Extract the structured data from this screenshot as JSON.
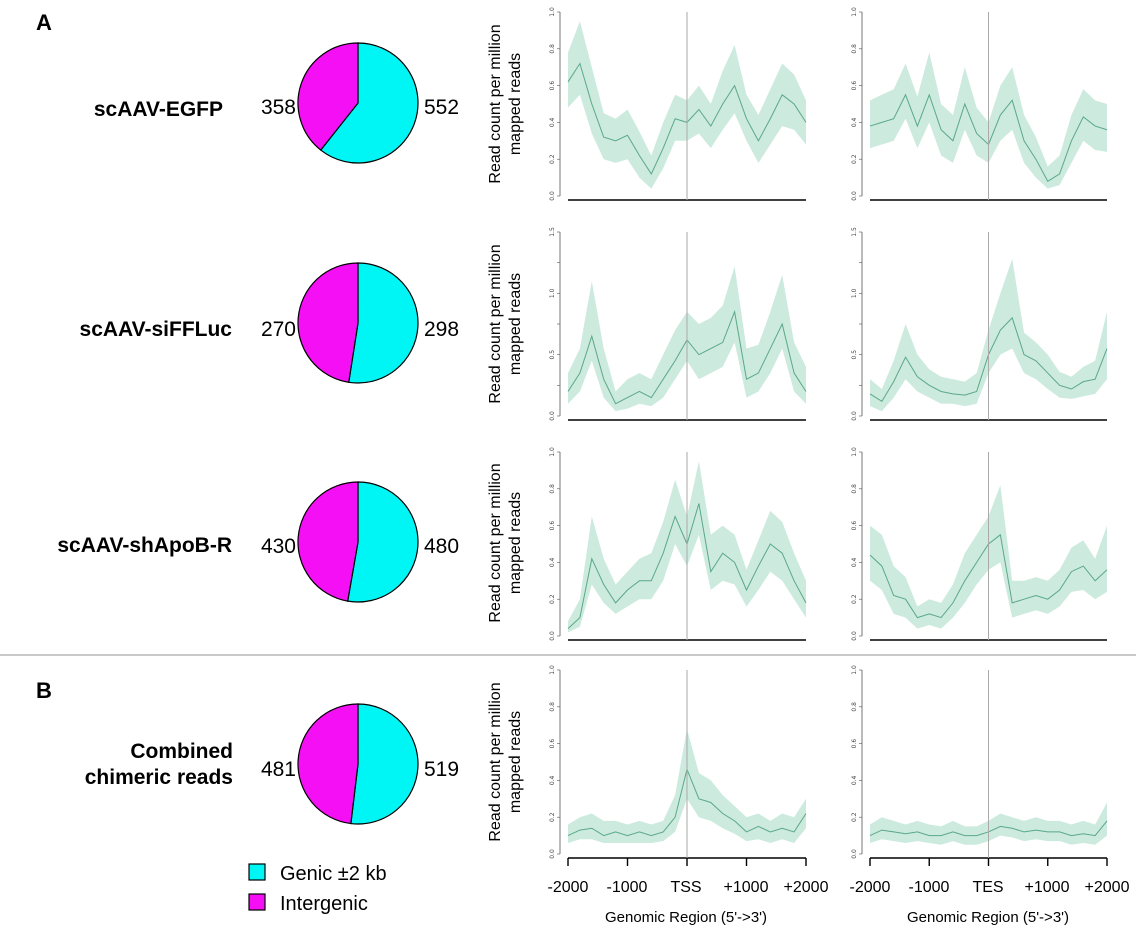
{
  "panel_labels": [
    "A",
    "B"
  ],
  "colors": {
    "genic": "#00f5f5",
    "intergenic": "#f50ff5",
    "band": "#c9e9dc",
    "line": "#5aa88a",
    "divider": "#c8c8c8"
  },
  "legend": {
    "genic_label": "Genic ±2 kb",
    "intergenic_label": "Intergenic"
  },
  "y_axis_label_line1": "Read count per million",
  "y_axis_label_line2": "mapped reads",
  "x_axis_label": "Genomic Region (5'->3')",
  "x_ticks_tss": [
    "-2000",
    "-1000",
    "TSS",
    "+1000",
    "+2000"
  ],
  "x_ticks_tes": [
    "-2000",
    "-1000",
    "TES",
    "+1000",
    "+2000"
  ],
  "chart_data": [
    {
      "type": "pie",
      "sample": "scAAV-EGFP",
      "categories": [
        "Genic ±2 kb",
        "Intergenic"
      ],
      "values": [
        552,
        358
      ]
    },
    {
      "type": "pie",
      "sample": "scAAV-siFFLuc",
      "categories": [
        "Genic ±2 kb",
        "Intergenic"
      ],
      "values": [
        298,
        270
      ]
    },
    {
      "type": "pie",
      "sample": "scAAV-shApoB-R",
      "categories": [
        "Genic ±2 kb",
        "Intergenic"
      ],
      "values": [
        480,
        430
      ]
    },
    {
      "type": "pie",
      "sample_line1": "Combined",
      "sample_line2": "chimeric reads",
      "categories": [
        "Genic ±2 kb",
        "Intergenic"
      ],
      "values": [
        519,
        481
      ]
    },
    {
      "type": "line",
      "row": 0,
      "region": "TSS",
      "ylim": [
        0,
        1.0
      ],
      "yticks": [
        "0.0",
        "0.2",
        "0.4",
        "0.6",
        "0.8",
        "1.0"
      ],
      "x": [
        -2000,
        -1800,
        -1600,
        -1400,
        -1200,
        -1000,
        -800,
        -600,
        -400,
        -200,
        0,
        200,
        400,
        600,
        800,
        1000,
        1200,
        1400,
        1600,
        1800,
        2000
      ],
      "y": [
        0.62,
        0.72,
        0.5,
        0.32,
        0.3,
        0.33,
        0.22,
        0.12,
        0.26,
        0.42,
        0.4,
        0.47,
        0.38,
        0.5,
        0.6,
        0.42,
        0.3,
        0.42,
        0.55,
        0.5,
        0.4
      ],
      "lower": [
        0.48,
        0.55,
        0.34,
        0.2,
        0.18,
        0.2,
        0.1,
        0.04,
        0.15,
        0.3,
        0.3,
        0.34,
        0.26,
        0.36,
        0.45,
        0.3,
        0.18,
        0.28,
        0.38,
        0.36,
        0.28
      ],
      "upper": [
        0.78,
        0.95,
        0.7,
        0.45,
        0.42,
        0.47,
        0.35,
        0.22,
        0.4,
        0.55,
        0.52,
        0.6,
        0.5,
        0.68,
        0.82,
        0.55,
        0.44,
        0.58,
        0.72,
        0.66,
        0.52
      ]
    },
    {
      "type": "line",
      "row": 0,
      "region": "TES",
      "ylim": [
        0,
        1.0
      ],
      "yticks": [
        "0.0",
        "0.2",
        "0.4",
        "0.6",
        "0.8",
        "1.0"
      ],
      "x": [
        -2000,
        -1800,
        -1600,
        -1400,
        -1200,
        -1000,
        -800,
        -600,
        -400,
        -200,
        0,
        200,
        400,
        600,
        800,
        1000,
        1200,
        1400,
        1600,
        1800,
        2000
      ],
      "y": [
        0.38,
        0.4,
        0.42,
        0.55,
        0.38,
        0.55,
        0.36,
        0.3,
        0.5,
        0.34,
        0.28,
        0.44,
        0.52,
        0.3,
        0.2,
        0.08,
        0.12,
        0.3,
        0.43,
        0.38,
        0.36
      ],
      "lower": [
        0.26,
        0.28,
        0.3,
        0.42,
        0.26,
        0.4,
        0.22,
        0.18,
        0.36,
        0.22,
        0.18,
        0.3,
        0.36,
        0.18,
        0.1,
        0.04,
        0.06,
        0.18,
        0.3,
        0.25,
        0.24
      ],
      "upper": [
        0.52,
        0.55,
        0.58,
        0.72,
        0.54,
        0.78,
        0.5,
        0.44,
        0.7,
        0.48,
        0.4,
        0.6,
        0.7,
        0.44,
        0.32,
        0.16,
        0.22,
        0.44,
        0.58,
        0.52,
        0.5
      ]
    },
    {
      "type": "line",
      "row": 1,
      "region": "TSS",
      "ylim": [
        0,
        1.5
      ],
      "yticks": [
        "0.0",
        "",
        "0.5",
        "",
        "1.0",
        "",
        "1.5"
      ],
      "x": [
        -2000,
        -1800,
        -1600,
        -1400,
        -1200,
        -1000,
        -800,
        -600,
        -400,
        -200,
        0,
        200,
        400,
        600,
        800,
        1000,
        1200,
        1400,
        1600,
        1800,
        2000
      ],
      "y": [
        0.2,
        0.35,
        0.65,
        0.3,
        0.1,
        0.15,
        0.2,
        0.15,
        0.3,
        0.45,
        0.62,
        0.5,
        0.55,
        0.6,
        0.85,
        0.3,
        0.35,
        0.55,
        0.75,
        0.35,
        0.2
      ],
      "lower": [
        0.1,
        0.2,
        0.45,
        0.15,
        0.04,
        0.06,
        0.1,
        0.08,
        0.15,
        0.3,
        0.45,
        0.3,
        0.35,
        0.4,
        0.6,
        0.15,
        0.2,
        0.35,
        0.55,
        0.2,
        0.1
      ],
      "upper": [
        0.35,
        0.55,
        1.1,
        0.55,
        0.2,
        0.3,
        0.35,
        0.3,
        0.5,
        0.7,
        0.85,
        0.75,
        0.8,
        0.9,
        1.22,
        0.55,
        0.58,
        0.85,
        1.15,
        0.6,
        0.4
      ]
    },
    {
      "type": "line",
      "row": 1,
      "region": "TES",
      "ylim": [
        0,
        1.5
      ],
      "yticks": [
        "0.0",
        "",
        "0.5",
        "",
        "1.0",
        "",
        "1.5"
      ],
      "x": [
        -2000,
        -1800,
        -1600,
        -1400,
        -1200,
        -1000,
        -800,
        -600,
        -400,
        -200,
        0,
        200,
        400,
        600,
        800,
        1000,
        1200,
        1400,
        1600,
        1800,
        2000
      ],
      "y": [
        0.18,
        0.12,
        0.28,
        0.48,
        0.32,
        0.25,
        0.2,
        0.18,
        0.17,
        0.2,
        0.5,
        0.7,
        0.8,
        0.5,
        0.45,
        0.35,
        0.25,
        0.22,
        0.28,
        0.3,
        0.55
      ],
      "lower": [
        0.08,
        0.04,
        0.15,
        0.3,
        0.2,
        0.15,
        0.1,
        0.1,
        0.08,
        0.1,
        0.35,
        0.5,
        0.55,
        0.35,
        0.3,
        0.22,
        0.15,
        0.14,
        0.16,
        0.18,
        0.3
      ],
      "upper": [
        0.3,
        0.22,
        0.45,
        0.75,
        0.5,
        0.38,
        0.32,
        0.3,
        0.28,
        0.35,
        0.7,
        1.0,
        1.28,
        0.68,
        0.6,
        0.5,
        0.36,
        0.32,
        0.4,
        0.45,
        0.85
      ]
    },
    {
      "type": "line",
      "row": 2,
      "region": "TSS",
      "ylim": [
        0,
        1.0
      ],
      "yticks": [
        "0.0",
        "0.2",
        "0.4",
        "0.6",
        "0.8",
        "1.0"
      ],
      "x": [
        -2000,
        -1800,
        -1600,
        -1400,
        -1200,
        -1000,
        -800,
        -600,
        -400,
        -200,
        0,
        200,
        400,
        600,
        800,
        1000,
        1200,
        1400,
        1600,
        1800,
        2000
      ],
      "y": [
        0.04,
        0.1,
        0.42,
        0.28,
        0.18,
        0.25,
        0.3,
        0.3,
        0.45,
        0.65,
        0.5,
        0.72,
        0.35,
        0.45,
        0.4,
        0.25,
        0.38,
        0.5,
        0.45,
        0.3,
        0.18
      ],
      "lower": [
        0.02,
        0.05,
        0.28,
        0.18,
        0.12,
        0.16,
        0.2,
        0.2,
        0.3,
        0.5,
        0.38,
        0.55,
        0.25,
        0.3,
        0.28,
        0.16,
        0.25,
        0.35,
        0.3,
        0.2,
        0.1
      ],
      "upper": [
        0.08,
        0.2,
        0.65,
        0.42,
        0.28,
        0.35,
        0.42,
        0.45,
        0.62,
        0.85,
        0.65,
        0.95,
        0.55,
        0.6,
        0.55,
        0.36,
        0.52,
        0.68,
        0.62,
        0.45,
        0.3
      ]
    },
    {
      "type": "line",
      "row": 2,
      "region": "TES",
      "ylim": [
        0,
        1.0
      ],
      "yticks": [
        "0.0",
        "0.2",
        "0.4",
        "0.6",
        "0.8",
        "1.0"
      ],
      "x": [
        -2000,
        -1800,
        -1600,
        -1400,
        -1200,
        -1000,
        -800,
        -600,
        -400,
        -200,
        0,
        200,
        400,
        600,
        800,
        1000,
        1200,
        1400,
        1600,
        1800,
        2000
      ],
      "y": [
        0.44,
        0.38,
        0.22,
        0.2,
        0.1,
        0.12,
        0.1,
        0.18,
        0.3,
        0.4,
        0.5,
        0.55,
        0.18,
        0.2,
        0.22,
        0.2,
        0.25,
        0.35,
        0.38,
        0.3,
        0.36
      ],
      "lower": [
        0.3,
        0.25,
        0.12,
        0.1,
        0.04,
        0.06,
        0.04,
        0.1,
        0.18,
        0.28,
        0.36,
        0.4,
        0.1,
        0.12,
        0.14,
        0.12,
        0.16,
        0.24,
        0.25,
        0.2,
        0.24
      ],
      "upper": [
        0.6,
        0.55,
        0.38,
        0.32,
        0.16,
        0.2,
        0.18,
        0.28,
        0.45,
        0.55,
        0.65,
        0.82,
        0.3,
        0.3,
        0.32,
        0.3,
        0.36,
        0.48,
        0.52,
        0.42,
        0.6
      ]
    },
    {
      "type": "line",
      "row": 3,
      "region": "TSS",
      "ylim": [
        0,
        1.0
      ],
      "yticks": [
        "0.0",
        "0.2",
        "0.4",
        "0.6",
        "0.8",
        "1.0"
      ],
      "x": [
        -2000,
        -1800,
        -1600,
        -1400,
        -1200,
        -1000,
        -800,
        -600,
        -400,
        -200,
        0,
        200,
        400,
        600,
        800,
        1000,
        1200,
        1400,
        1600,
        1800,
        2000
      ],
      "y": [
        0.1,
        0.13,
        0.14,
        0.1,
        0.12,
        0.1,
        0.12,
        0.1,
        0.12,
        0.2,
        0.46,
        0.3,
        0.28,
        0.22,
        0.18,
        0.12,
        0.15,
        0.12,
        0.14,
        0.12,
        0.22
      ],
      "lower": [
        0.06,
        0.08,
        0.08,
        0.06,
        0.06,
        0.06,
        0.06,
        0.06,
        0.07,
        0.12,
        0.3,
        0.2,
        0.18,
        0.14,
        0.11,
        0.07,
        0.08,
        0.06,
        0.08,
        0.06,
        0.14
      ],
      "upper": [
        0.16,
        0.2,
        0.22,
        0.18,
        0.18,
        0.16,
        0.18,
        0.16,
        0.18,
        0.32,
        0.68,
        0.44,
        0.4,
        0.32,
        0.26,
        0.2,
        0.22,
        0.18,
        0.22,
        0.2,
        0.3
      ]
    },
    {
      "type": "line",
      "row": 3,
      "region": "TES",
      "ylim": [
        0,
        1.0
      ],
      "yticks": [
        "0.0",
        "0.2",
        "0.4",
        "0.6",
        "0.8",
        "1.0"
      ],
      "x": [
        -2000,
        -1800,
        -1600,
        -1400,
        -1200,
        -1000,
        -800,
        -600,
        -400,
        -200,
        0,
        200,
        400,
        600,
        800,
        1000,
        1200,
        1400,
        1600,
        1800,
        2000
      ],
      "y": [
        0.1,
        0.13,
        0.12,
        0.11,
        0.12,
        0.1,
        0.1,
        0.12,
        0.1,
        0.1,
        0.12,
        0.15,
        0.14,
        0.12,
        0.13,
        0.12,
        0.12,
        0.1,
        0.11,
        0.1,
        0.18
      ],
      "lower": [
        0.06,
        0.08,
        0.07,
        0.06,
        0.07,
        0.06,
        0.05,
        0.07,
        0.05,
        0.05,
        0.07,
        0.1,
        0.09,
        0.07,
        0.08,
        0.07,
        0.07,
        0.05,
        0.06,
        0.05,
        0.1
      ],
      "upper": [
        0.16,
        0.2,
        0.18,
        0.16,
        0.18,
        0.16,
        0.15,
        0.18,
        0.15,
        0.15,
        0.18,
        0.22,
        0.2,
        0.18,
        0.2,
        0.18,
        0.18,
        0.16,
        0.18,
        0.16,
        0.28
      ]
    }
  ]
}
